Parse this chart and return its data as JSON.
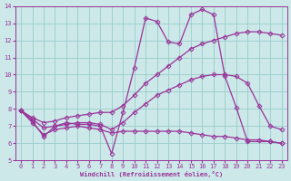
{
  "xlabel": "Windchill (Refroidissement éolien,°C)",
  "xlim": [
    -0.5,
    23.5
  ],
  "ylim": [
    5,
    14
  ],
  "xticks": [
    0,
    1,
    2,
    3,
    4,
    5,
    6,
    7,
    8,
    9,
    10,
    11,
    12,
    13,
    14,
    15,
    16,
    17,
    18,
    19,
    20,
    21,
    22,
    23
  ],
  "yticks": [
    5,
    6,
    7,
    8,
    9,
    10,
    11,
    12,
    13,
    14
  ],
  "bg_color": "#cce8e8",
  "line_color": "#993399",
  "grid_color": "#99cccc",
  "series": [
    {
      "x": [
        0,
        1,
        2,
        3,
        4,
        5,
        6,
        7,
        8,
        9,
        10,
        11,
        12,
        13,
        14,
        15,
        16,
        17,
        18,
        19,
        20,
        22,
        23
      ],
      "y": [
        7.9,
        7.3,
        6.4,
        7.0,
        7.2,
        7.1,
        7.1,
        7.0,
        5.4,
        7.8,
        10.4,
        13.3,
        13.1,
        11.9,
        11.8,
        13.5,
        13.8,
        13.5,
        9.9,
        8.1,
        6.1,
        6.1,
        6.0
      ]
    },
    {
      "x": [
        0,
        1,
        2,
        3,
        4,
        5,
        6,
        7,
        8,
        9,
        10,
        11,
        12,
        13,
        14,
        15,
        16,
        17,
        18,
        19,
        20,
        21,
        22,
        23
      ],
      "y": [
        7.9,
        7.5,
        7.2,
        7.3,
        7.5,
        7.6,
        7.7,
        7.8,
        7.8,
        8.2,
        8.8,
        9.5,
        10.0,
        10.5,
        11.0,
        11.5,
        11.8,
        12.0,
        12.2,
        12.4,
        12.5,
        12.5,
        12.4,
        12.3
      ]
    },
    {
      "x": [
        0,
        1,
        2,
        3,
        4,
        5,
        6,
        7,
        8,
        9,
        10,
        11,
        12,
        13,
        14,
        15,
        16,
        17,
        18,
        19,
        20,
        21,
        22,
        23
      ],
      "y": [
        7.9,
        7.4,
        6.9,
        7.0,
        7.1,
        7.2,
        7.2,
        7.1,
        6.8,
        7.2,
        7.8,
        8.3,
        8.8,
        9.1,
        9.4,
        9.7,
        9.9,
        10.0,
        10.0,
        9.9,
        9.5,
        8.2,
        7.0,
        6.8
      ]
    },
    {
      "x": [
        0,
        1,
        2,
        3,
        4,
        5,
        6,
        7,
        8,
        9,
        10,
        11,
        12,
        13,
        14,
        15,
        16,
        17,
        18,
        19,
        20,
        21,
        22,
        23
      ],
      "y": [
        7.9,
        7.2,
        6.5,
        6.8,
        6.9,
        7.0,
        6.9,
        6.8,
        6.6,
        6.7,
        6.7,
        6.7,
        6.7,
        6.7,
        6.7,
        6.6,
        6.5,
        6.4,
        6.4,
        6.3,
        6.2,
        6.2,
        6.1,
        6.0
      ]
    }
  ]
}
